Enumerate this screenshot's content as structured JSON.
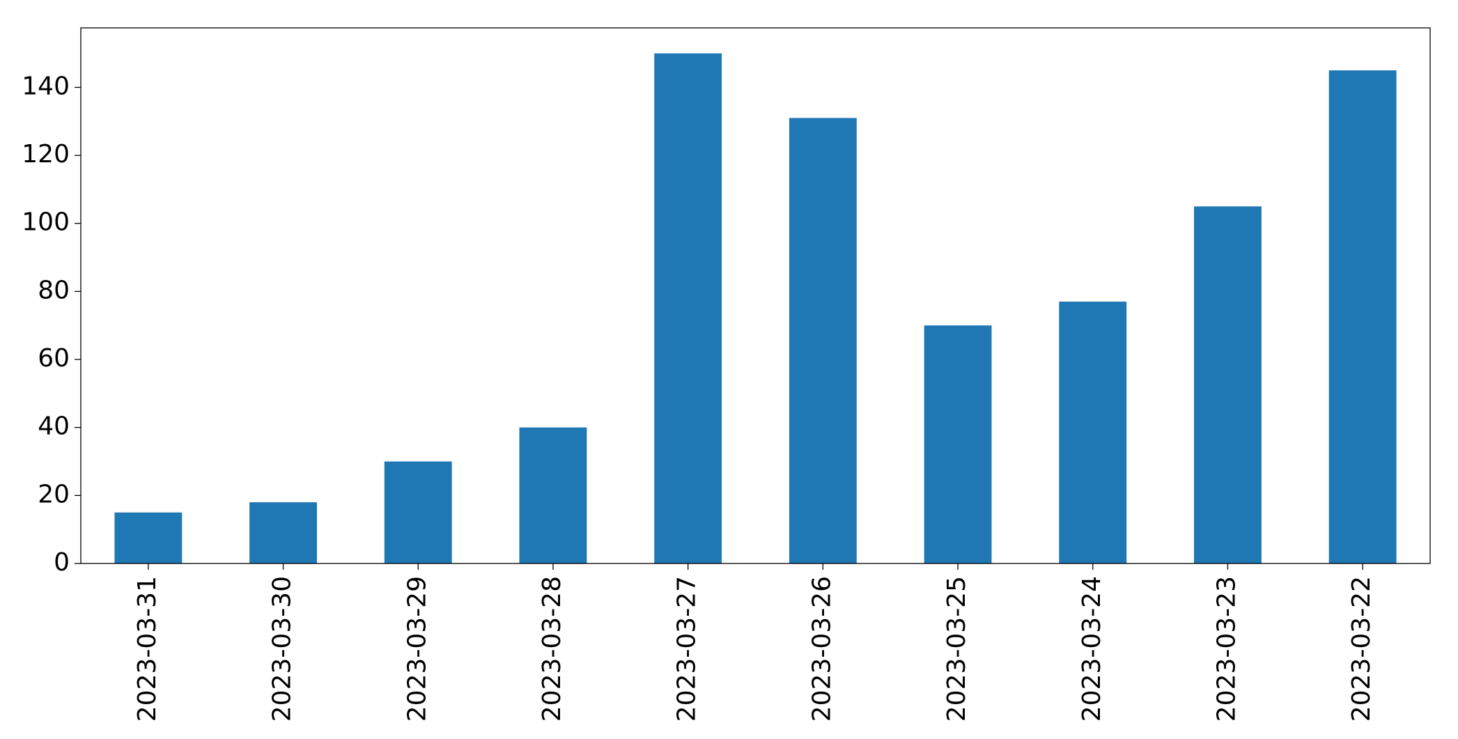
{
  "chart_data": {
    "type": "bar",
    "categories": [
      "2023-03-31",
      "2023-03-30",
      "2023-03-29",
      "2023-03-28",
      "2023-03-27",
      "2023-03-26",
      "2023-03-25",
      "2023-03-24",
      "2023-03-23",
      "2023-03-22"
    ],
    "values": [
      15,
      18,
      30,
      40,
      150,
      131,
      70,
      77,
      105,
      145
    ],
    "color": "#1f77b4",
    "ylim": [
      0,
      157.5
    ],
    "yticks": [
      0,
      20,
      40,
      60,
      80,
      100,
      120,
      140
    ],
    "grid": false
  }
}
